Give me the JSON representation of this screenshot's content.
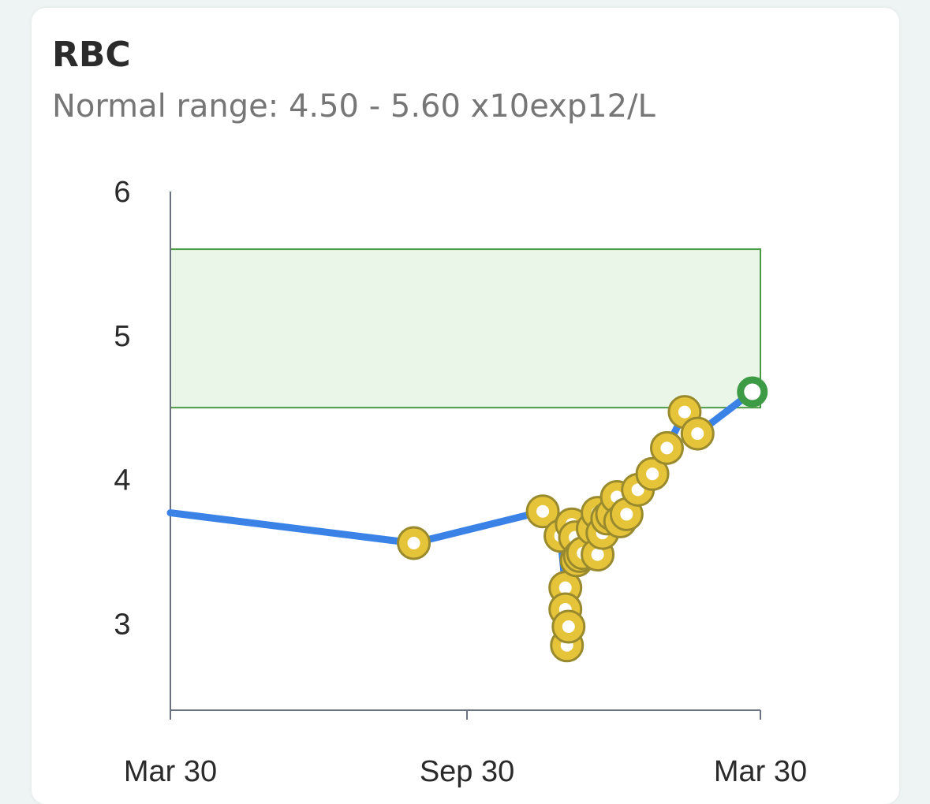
{
  "card": {
    "title": "RBC",
    "subtitle": "Normal range: 4.50 - 5.60 x10exp12/L"
  },
  "colors": {
    "line": "#3b82e6",
    "point_fill": "#e6c43a",
    "point_stroke": "#9a8a2e",
    "latest_point": "#3d9a45",
    "range_fill": "#eaf6e8",
    "range_stroke": "#4a9a45",
    "axis": "#6b7280"
  },
  "chart_data": {
    "type": "line",
    "ylim": [
      2.4,
      6.0
    ],
    "yticks": [
      3,
      4,
      5,
      6
    ],
    "xlim": [
      "2023-03-30",
      "2024-03-30"
    ],
    "xticks": [
      {
        "date": "2023-03-30",
        "label": "Mar 30"
      },
      {
        "date": "2023-09-30",
        "label": "Sep 30"
      },
      {
        "date": "2024-03-30",
        "label": "Mar 30"
      }
    ],
    "normal_range": [
      4.5,
      5.6
    ],
    "grid": false,
    "legend": "none",
    "series_start_value": 3.77,
    "points": [
      {
        "x": "2023-08-28",
        "y": 3.56
      },
      {
        "x": "2023-11-16",
        "y": 3.78
      },
      {
        "x": "2023-11-27",
        "y": 3.61
      },
      {
        "x": "2023-11-30",
        "y": 3.25
      },
      {
        "x": "2023-11-30",
        "y": 3.1
      },
      {
        "x": "2023-12-01",
        "y": 2.85
      },
      {
        "x": "2023-12-02",
        "y": 2.98
      },
      {
        "x": "2023-12-04",
        "y": 3.69
      },
      {
        "x": "2023-12-06",
        "y": 3.6
      },
      {
        "x": "2023-12-07",
        "y": 3.44
      },
      {
        "x": "2023-12-09",
        "y": 3.47
      },
      {
        "x": "2023-12-11",
        "y": 3.49
      },
      {
        "x": "2023-12-17",
        "y": 3.66
      },
      {
        "x": "2023-12-20",
        "y": 3.48
      },
      {
        "x": "2023-12-20",
        "y": 3.77
      },
      {
        "x": "2023-12-23",
        "y": 3.63
      },
      {
        "x": "2023-12-26",
        "y": 3.73
      },
      {
        "x": "2023-12-29",
        "y": 3.76
      },
      {
        "x": "2024-01-01",
        "y": 3.88
      },
      {
        "x": "2024-01-03",
        "y": 3.71
      },
      {
        "x": "2024-01-07",
        "y": 3.76
      },
      {
        "x": "2024-01-14",
        "y": 3.93
      },
      {
        "x": "2024-01-23",
        "y": 4.04
      },
      {
        "x": "2024-02-01",
        "y": 4.22
      },
      {
        "x": "2024-02-12",
        "y": 4.47
      },
      {
        "x": "2024-02-20",
        "y": 4.32
      },
      {
        "x": "2024-03-25",
        "y": 4.61
      }
    ],
    "latest_index": 26
  }
}
